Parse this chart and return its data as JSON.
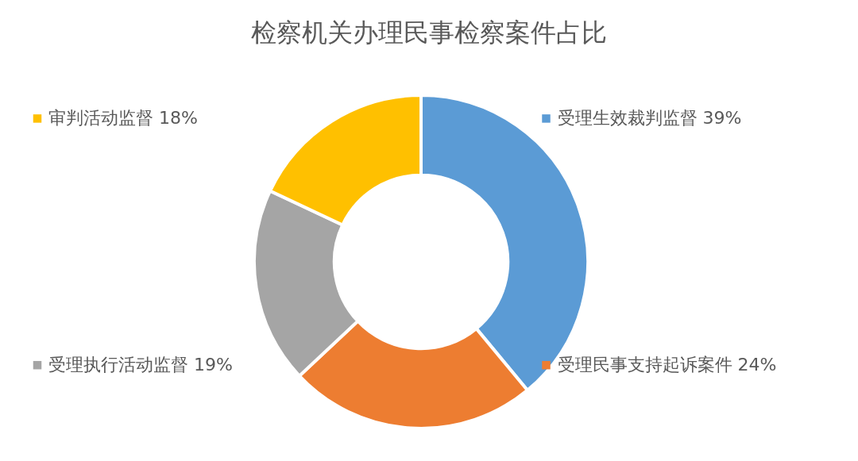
{
  "chart_data": {
    "type": "donut",
    "title": "检察机关办理民事检察案件占比",
    "categories": [
      "受理生效裁判监督",
      "受理民事支持起诉案件",
      "受理执行活动监督",
      "审判活动监督"
    ],
    "values": [
      39,
      24,
      19,
      18
    ],
    "value_labels": [
      "39%",
      "24%",
      "19%",
      "18%"
    ],
    "colors": [
      "#5b9bd5",
      "#ed7d31",
      "#a5a5a5",
      "#ffc000"
    ],
    "legend": "top left"
  }
}
